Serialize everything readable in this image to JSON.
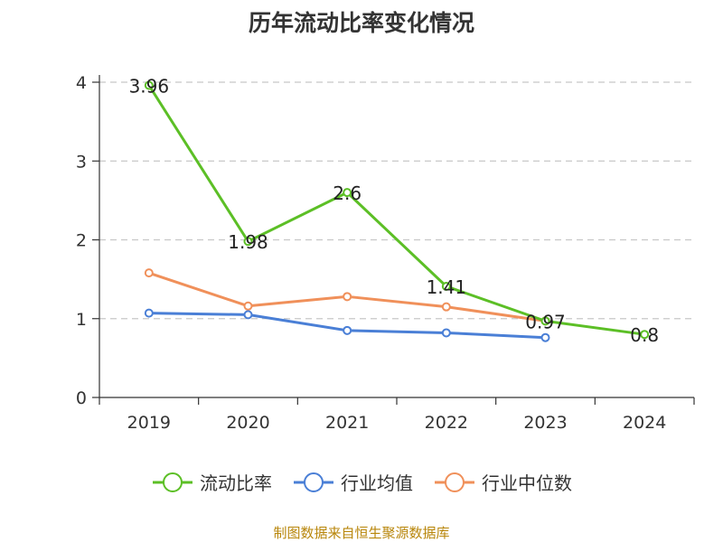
{
  "chart_data": {
    "type": "line",
    "title": "历年流动比率变化情况",
    "categories": [
      "2019",
      "2020",
      "2021",
      "2022",
      "2023",
      "2024"
    ],
    "ylim": [
      0,
      4
    ],
    "yticks": [
      0,
      1,
      2,
      3,
      4
    ],
    "grid": true,
    "legend_position": "bottom",
    "series": [
      {
        "name": "流动比率",
        "color": "#5cbf26",
        "values": [
          3.96,
          1.98,
          2.6,
          1.41,
          0.97,
          0.8
        ],
        "show_labels": true
      },
      {
        "name": "行业均值",
        "color": "#4a7fd6",
        "values": [
          1.07,
          1.05,
          0.85,
          0.82,
          0.76,
          null
        ],
        "show_labels": false
      },
      {
        "name": "行业中位数",
        "color": "#f0905a",
        "values": [
          1.58,
          1.16,
          1.28,
          1.15,
          0.97,
          null
        ],
        "show_labels": false
      }
    ]
  },
  "footer": {
    "source": "制图数据来自恒生聚源数据库"
  }
}
